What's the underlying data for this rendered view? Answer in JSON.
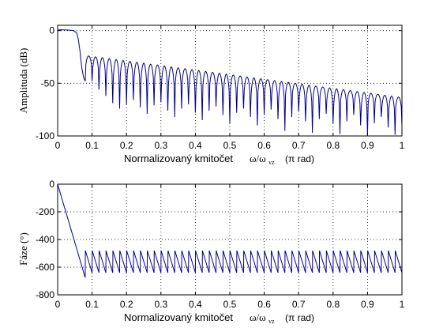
{
  "chart_data": [
    {
      "type": "line",
      "xlabel": "Normalizovaný kmitočet",
      "xlabel_symbol": "ω/ω",
      "xlabel_subscript": "vz",
      "xlabel_unit": "(π rad)",
      "ylabel": "Amplituda (dB)",
      "xlim": [
        0,
        1
      ],
      "ylim": [
        -100,
        5
      ],
      "x_ticks": [
        "0",
        "0.1",
        "0.2",
        "0.3",
        "0.4",
        "0.5",
        "0.6",
        "0.7",
        "0.8",
        "0.9",
        "1"
      ],
      "y_ticks": [
        "0",
        "-50",
        "-100"
      ],
      "x_tick_values": [
        0,
        0.1,
        0.2,
        0.3,
        0.4,
        0.5,
        0.6,
        0.7,
        0.8,
        0.9,
        1
      ],
      "y_tick_values": [
        0,
        -50,
        -100
      ],
      "grid": true,
      "line_color": "#00008b",
      "passband": {
        "x": [
          0,
          0.01,
          0.03,
          0.045,
          0.055,
          0.06,
          0.065,
          0.07,
          0.075,
          0.08
        ],
        "y": [
          0.5,
          0.8,
          0.5,
          0.0,
          -2.0,
          -8.0,
          -20.0,
          -35.0,
          -44.0,
          -48.0
        ]
      },
      "stopband": {
        "start": 0.08,
        "end": 1.0,
        "lobe_count": 46,
        "peak_start_db": -24,
        "peak_end_db": -63,
        "notch_db": [
          -48,
          -56,
          -62,
          -69,
          -74,
          -70,
          -66,
          -73,
          -79,
          -71,
          -68,
          -76,
          -82,
          -74,
          -70,
          -78,
          -85,
          -76,
          -72,
          -80,
          -88,
          -78,
          -74,
          -82,
          -90,
          -80,
          -75,
          -84,
          -95,
          -82,
          -77,
          -86,
          -97,
          -84,
          -79,
          -88,
          -98,
          -86,
          -80,
          -90,
          -99,
          -88,
          -82,
          -92,
          -99,
          -90
        ]
      }
    },
    {
      "type": "line",
      "xlabel": "Normalizovaný kmitočet",
      "xlabel_symbol": "ω/ω",
      "xlabel_subscript": "vz",
      "xlabel_unit": "(π rad)",
      "ylabel": "Fáze  (°)",
      "xlim": [
        0,
        1
      ],
      "ylim": [
        -800,
        0
      ],
      "x_ticks": [
        "0",
        "0.1",
        "0.2",
        "0.3",
        "0.4",
        "0.5",
        "0.6",
        "0.7",
        "0.8",
        "0.9",
        "1"
      ],
      "y_ticks": [
        "0",
        "-200",
        "-400",
        "-600",
        "-800"
      ],
      "x_tick_values": [
        0,
        0.1,
        0.2,
        0.3,
        0.4,
        0.5,
        0.6,
        0.7,
        0.8,
        0.9,
        1
      ],
      "y_tick_values": [
        0,
        -200,
        -400,
        -600,
        -800
      ],
      "grid": true,
      "line_color": "#00008b",
      "initial": {
        "x": [
          0,
          0.08
        ],
        "y": [
          0,
          -675
        ]
      },
      "sawtooth": {
        "start": 0.08,
        "end": 1.0,
        "tooth_count": 46,
        "top_deg": -480,
        "bottom_deg": -640
      }
    }
  ]
}
